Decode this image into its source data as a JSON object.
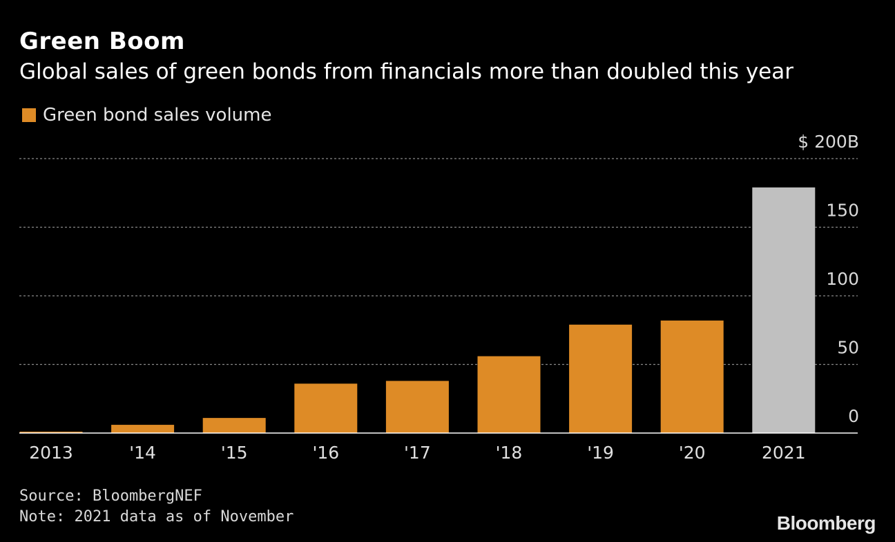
{
  "title": "Green Boom",
  "subtitle": "Global sales of green bonds from financials more than doubled this year",
  "legend": {
    "label": "Green bond sales volume",
    "color": "#de8b26"
  },
  "chart_data": {
    "type": "bar",
    "categories": [
      "2013",
      "'14",
      "'15",
      "'16",
      "'17",
      "'18",
      "'19",
      "'20",
      "2021"
    ],
    "series": [
      {
        "name": "Green bond sales volume",
        "values": [
          1,
          6,
          11,
          36,
          38,
          56,
          79,
          82,
          179
        ]
      }
    ],
    "bar_colors": [
      "#de8b26",
      "#de8b26",
      "#de8b26",
      "#de8b26",
      "#de8b26",
      "#de8b26",
      "#de8b26",
      "#de8b26",
      "#c0c0c0"
    ],
    "ylim": [
      0,
      200
    ],
    "yticks": [
      0,
      50,
      100,
      150,
      200
    ],
    "ytick_labels": [
      "0",
      "50",
      "100",
      "150",
      "$ 200B"
    ],
    "y_axis_side": "right",
    "grid": true
  },
  "footer": {
    "source": "Source: BloombergNEF",
    "note": "Note: 2021 data as of November"
  },
  "brand": "Bloomberg"
}
